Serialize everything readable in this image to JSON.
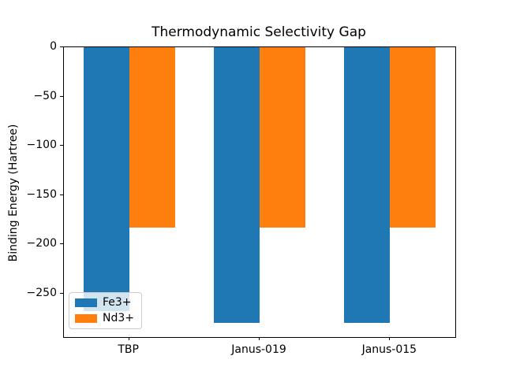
{
  "chart_data": {
    "type": "bar",
    "title": "Thermodynamic Selectivity Gap",
    "xlabel": "",
    "ylabel": "Binding Energy (Hartree)",
    "categories": [
      "TBP",
      "Janus-019",
      "Janus-015"
    ],
    "series": [
      {
        "name": "Fe3+",
        "color": "#1f77b4",
        "values": [
          -268,
          -280,
          -280
        ]
      },
      {
        "name": "Nd3+",
        "color": "#ff7f0e",
        "values": [
          -183,
          -183,
          -183
        ]
      }
    ],
    "ylim": [
      -294,
      0
    ],
    "yticks": [
      0,
      -50,
      -100,
      -150,
      -200,
      -250
    ],
    "bar_width_fraction": 0.35,
    "grid": false,
    "legend": {
      "position": "lower left",
      "entries": [
        "Fe3+",
        "Nd3+"
      ]
    },
    "colors": {
      "background": "#ffffff",
      "spine": "#000000",
      "text": "#000000",
      "legend_border": "#cccccc"
    }
  }
}
